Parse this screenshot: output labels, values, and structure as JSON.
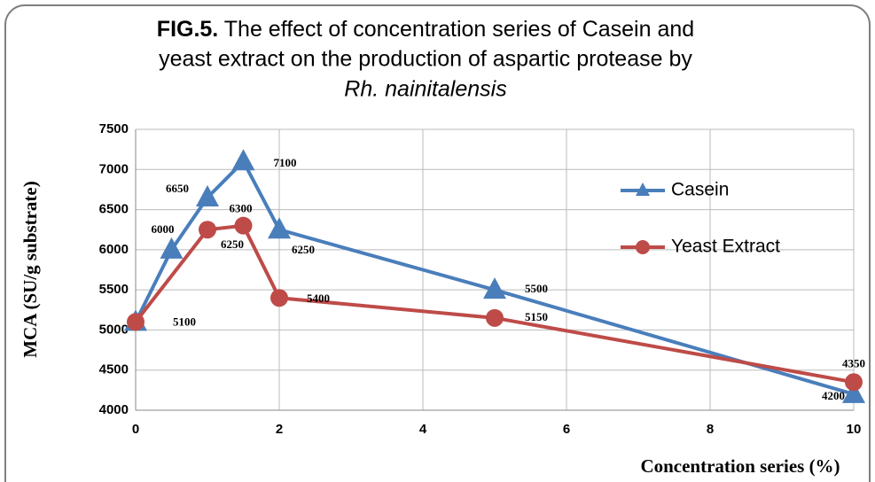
{
  "chart_data": {
    "type": "line",
    "title": {
      "label": "FIG.5.",
      "line1": "The effect of concentration series of Casein and",
      "line2": "yeast extract on the production of aspartic protease by",
      "line3": "Rh. nainitalensis"
    },
    "x_label": "Concentration series (%)",
    "y_label": "MCA (SU/g substrate)",
    "xlim": [
      0,
      10
    ],
    "xticks": [
      0,
      2,
      4,
      6,
      8,
      10
    ],
    "ylim": [
      4000,
      7500
    ],
    "yticks": [
      4000,
      4500,
      5000,
      5500,
      6000,
      6500,
      7000,
      7500
    ],
    "grid": true,
    "legend": "right",
    "series": [
      {
        "name": "Casein",
        "color": "#4a7ebb",
        "marker": "triangle",
        "x": [
          0,
          0.5,
          1,
          1.5,
          2,
          5,
          10
        ],
        "values": [
          5100,
          6000,
          6650,
          7100,
          6250,
          5500,
          4200
        ]
      },
      {
        "name": "Yeast Extract",
        "color": "#be4b48",
        "marker": "circle",
        "x": [
          0,
          1,
          1.5,
          2,
          5,
          10
        ],
        "values": [
          5100,
          6250,
          6300,
          5400,
          5150,
          4350
        ]
      }
    ]
  }
}
